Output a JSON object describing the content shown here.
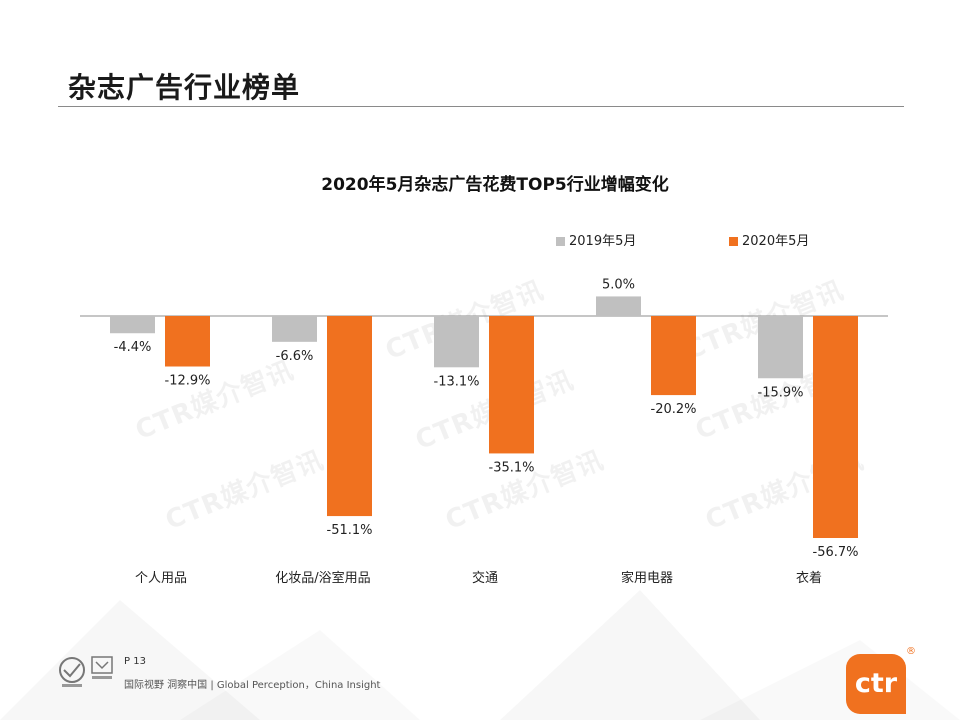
{
  "page": {
    "title": "杂志广告行业榜单",
    "page_number": "P 13",
    "footer_text": "国际视野 洞察中国 | Global Perception，China Insight",
    "brand_logo": "ctr",
    "registered_mark": "®",
    "watermark_text": "CTR媒介智讯"
  },
  "colors": {
    "series_2019": "#c0c0c0",
    "series_2020": "#f0711f",
    "accent": "#f0711f"
  },
  "icons": {
    "certification": "sgs-ukas-certification-icon"
  },
  "chart_data": {
    "type": "bar",
    "title": "2020年5月杂志广告花费TOP5行业增幅变化",
    "categories": [
      "个人用品",
      "化妆品/浴室用品",
      "交通",
      "家用电器",
      "衣着"
    ],
    "series": [
      {
        "name": "2019年5月",
        "values": [
          -4.4,
          -6.6,
          -13.1,
          5.0,
          -15.9
        ],
        "labels": [
          "-4.4%",
          "-6.6%",
          "-13.1%",
          "5.0%",
          "-15.9%"
        ]
      },
      {
        "name": "2020年5月",
        "values": [
          -12.9,
          -51.1,
          -35.1,
          -20.2,
          -56.7
        ],
        "labels": [
          "-12.9%",
          "-51.1%",
          "-35.1%",
          "-20.2%",
          "-56.7%"
        ]
      }
    ],
    "unit": "%",
    "ylim": [
      -60,
      10
    ],
    "legend_position": "top-right",
    "grid": false
  }
}
